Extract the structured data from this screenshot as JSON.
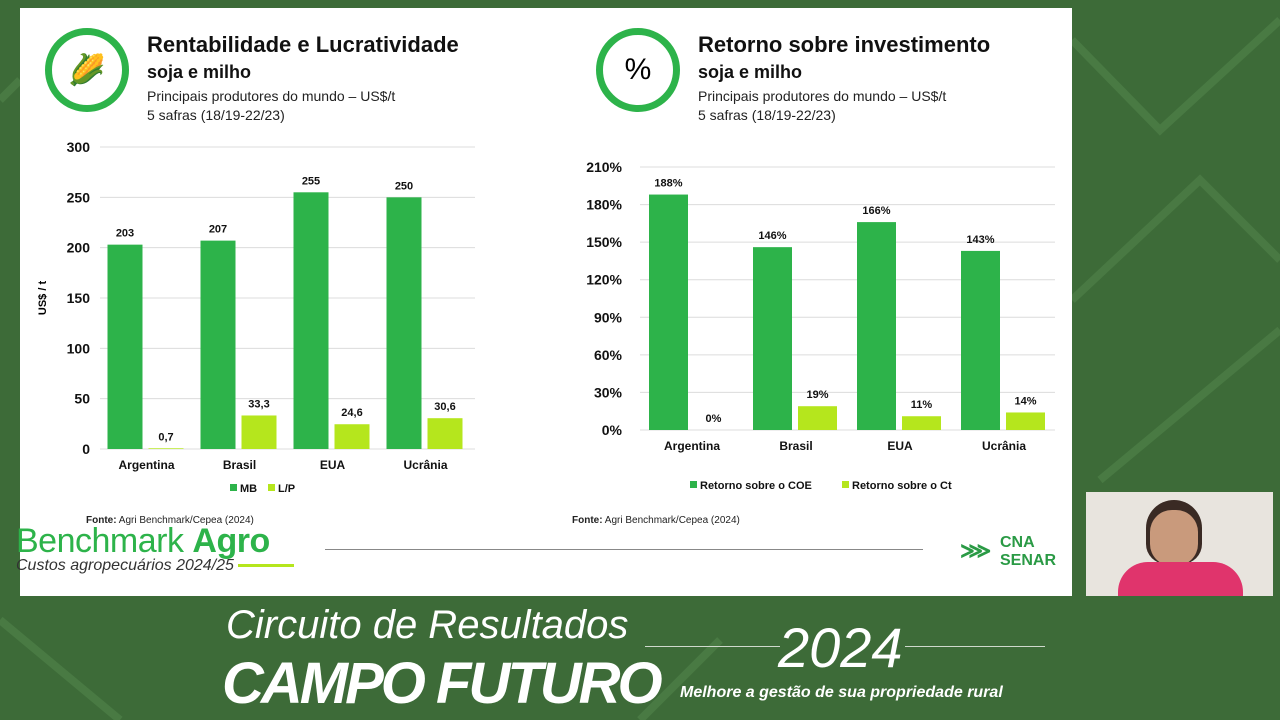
{
  "left": {
    "title": "Rentabilidade e Lucratividade",
    "subtitle": "soja e milho",
    "desc1": "Principais produtores do mundo – US$/t",
    "desc2": "5 safras (18/19-22/23)",
    "source_label": "Fonte:",
    "source": " Agri Benchmark/Cepea (2024)",
    "icon": "soy-corn-icon"
  },
  "right": {
    "title": "Retorno sobre investimento",
    "subtitle": "soja e milho",
    "desc1": "Principais produtores do mundo – US$/t",
    "desc2": "5 safras (18/19-22/23)",
    "source_label": "Fonte:",
    "source": " Agri Benchmark/Cepea (2024)",
    "icon": "soy-corn-percent-icon"
  },
  "brand": {
    "name1": "Benchmark ",
    "name2": "Agro",
    "sub": "Custos agropecuários 2024/25",
    "cna1": "CNA",
    "cna2": "SENAR"
  },
  "footer": {
    "line1": "Circuito de Resultados",
    "line2": "CAMPO FUTURO",
    "year": "2024",
    "tagline": "Melhore a gestão de sua propriedade rural"
  },
  "colors": {
    "dark_green": "#2db34a",
    "light_green": "#b5e61d",
    "bg": "#3d6b38"
  },
  "chart_data": [
    {
      "type": "bar",
      "categories": [
        "Argentina",
        "Brasil",
        "EUA",
        "Ucrânia"
      ],
      "ylabel": "US$ / t",
      "ylim": [
        0,
        300
      ],
      "yticks": [
        0,
        50,
        100,
        150,
        200,
        250,
        300
      ],
      "grid": true,
      "legend": "bottom",
      "series": [
        {
          "name": "MB",
          "values": [
            203,
            207,
            255,
            250
          ],
          "labels": [
            "203",
            "207",
            "255",
            "250"
          ]
        },
        {
          "name": "L/P",
          "values": [
            0.7,
            33.3,
            24.6,
            30.6
          ],
          "labels": [
            "0,7",
            "33,3",
            "24,6",
            "30,6"
          ]
        }
      ]
    },
    {
      "type": "bar",
      "categories": [
        "Argentina",
        "Brasil",
        "EUA",
        "Ucrânia"
      ],
      "ylabel": "",
      "ylim": [
        0,
        210
      ],
      "yticks": [
        0,
        30,
        60,
        90,
        120,
        150,
        180,
        210
      ],
      "ytick_suffix": "%",
      "grid": true,
      "legend": "bottom",
      "series": [
        {
          "name": "Retorno sobre o COE",
          "values": [
            188,
            146,
            166,
            143
          ],
          "labels": [
            "188%",
            "146%",
            "166%",
            "143%"
          ]
        },
        {
          "name": "Retorno sobre o Ct",
          "values": [
            0,
            19,
            11,
            14
          ],
          "labels": [
            "0%",
            "19%",
            "11%",
            "14%"
          ]
        }
      ]
    }
  ]
}
